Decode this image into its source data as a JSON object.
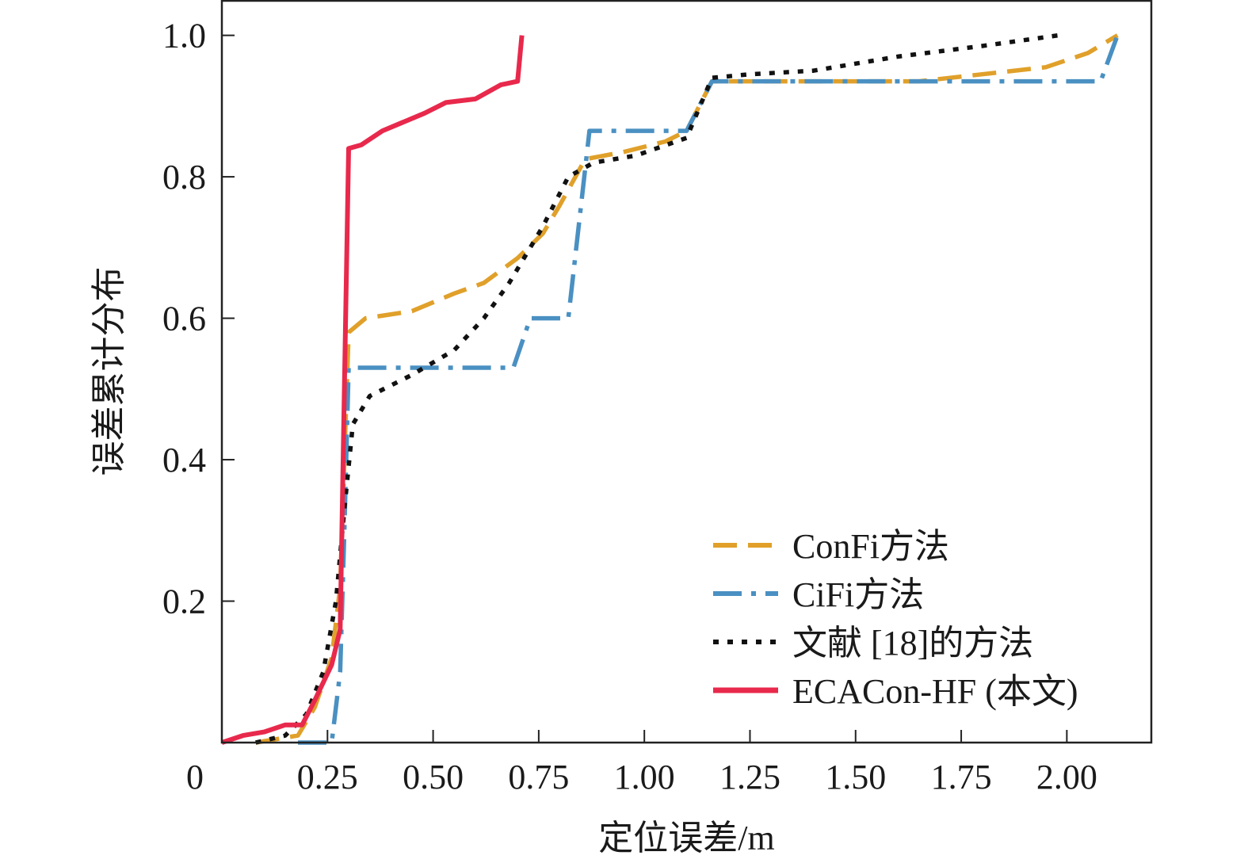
{
  "chart_data": {
    "type": "line",
    "xlabel": "定位误差/m",
    "ylabel": "误差累计分布",
    "xlim": [
      0,
      2.2
    ],
    "ylim": [
      0,
      1.05
    ],
    "x_ticks": [
      0.25,
      0.5,
      0.75,
      1.0,
      1.25,
      1.5,
      1.75,
      2.0
    ],
    "x_tick_labels": [
      "0.25",
      "0.50",
      "0.75",
      "1.00",
      "1.25",
      "1.50",
      "1.75",
      "2.00"
    ],
    "y_ticks": [
      0.2,
      0.4,
      0.6,
      0.8,
      1.0
    ],
    "y_tick_labels": [
      "0.2",
      "0.4",
      "0.6",
      "0.8",
      "1.0"
    ],
    "origin_label": "0",
    "grid": false,
    "legend_position": "bottom-right",
    "series": [
      {
        "name": "ConFi方法",
        "color": "#E0A02A",
        "style": "dashed",
        "points": [
          [
            0.08,
            0.0
          ],
          [
            0.18,
            0.01
          ],
          [
            0.22,
            0.05
          ],
          [
            0.26,
            0.12
          ],
          [
            0.28,
            0.22
          ],
          [
            0.29,
            0.4
          ],
          [
            0.3,
            0.58
          ],
          [
            0.34,
            0.6
          ],
          [
            0.45,
            0.61
          ],
          [
            0.55,
            0.635
          ],
          [
            0.62,
            0.65
          ],
          [
            0.7,
            0.685
          ],
          [
            0.76,
            0.72
          ],
          [
            0.8,
            0.76
          ],
          [
            0.86,
            0.825
          ],
          [
            0.95,
            0.835
          ],
          [
            1.05,
            0.85
          ],
          [
            1.1,
            0.865
          ],
          [
            1.16,
            0.935
          ],
          [
            1.3,
            0.935
          ],
          [
            1.65,
            0.935
          ],
          [
            1.8,
            0.945
          ],
          [
            1.95,
            0.955
          ],
          [
            2.05,
            0.975
          ],
          [
            2.12,
            1.0
          ]
        ]
      },
      {
        "name": "CiFi方法",
        "color": "#4A90C2",
        "style": "dashdot",
        "points": [
          [
            0.18,
            0.0
          ],
          [
            0.26,
            0.0
          ],
          [
            0.28,
            0.1
          ],
          [
            0.29,
            0.3
          ],
          [
            0.3,
            0.53
          ],
          [
            0.5,
            0.53
          ],
          [
            0.69,
            0.53
          ],
          [
            0.73,
            0.6
          ],
          [
            0.82,
            0.6
          ],
          [
            0.87,
            0.865
          ],
          [
            1.1,
            0.865
          ],
          [
            1.16,
            0.935
          ],
          [
            1.5,
            0.935
          ],
          [
            2.08,
            0.935
          ],
          [
            2.12,
            1.0
          ]
        ]
      },
      {
        "name": "文献 [18]的方法",
        "color": "#111111",
        "style": "dotted",
        "points": [
          [
            0.08,
            0.0
          ],
          [
            0.15,
            0.01
          ],
          [
            0.2,
            0.04
          ],
          [
            0.24,
            0.1
          ],
          [
            0.27,
            0.2
          ],
          [
            0.29,
            0.33
          ],
          [
            0.31,
            0.45
          ],
          [
            0.35,
            0.49
          ],
          [
            0.45,
            0.52
          ],
          [
            0.55,
            0.555
          ],
          [
            0.62,
            0.6
          ],
          [
            0.68,
            0.65
          ],
          [
            0.76,
            0.73
          ],
          [
            0.82,
            0.8
          ],
          [
            0.88,
            0.82
          ],
          [
            0.98,
            0.83
          ],
          [
            1.1,
            0.855
          ],
          [
            1.16,
            0.94
          ],
          [
            1.25,
            0.945
          ],
          [
            1.4,
            0.95
          ],
          [
            1.6,
            0.97
          ],
          [
            1.8,
            0.985
          ],
          [
            1.98,
            1.0
          ]
        ]
      },
      {
        "name": "ECACon-HF (本文)",
        "color": "#E8294C",
        "style": "solid",
        "points": [
          [
            0.0,
            0.0
          ],
          [
            0.05,
            0.01
          ],
          [
            0.1,
            0.015
          ],
          [
            0.15,
            0.025
          ],
          [
            0.19,
            0.025
          ],
          [
            0.22,
            0.06
          ],
          [
            0.26,
            0.11
          ],
          [
            0.28,
            0.16
          ],
          [
            0.29,
            0.5
          ],
          [
            0.3,
            0.84
          ],
          [
            0.33,
            0.845
          ],
          [
            0.38,
            0.865
          ],
          [
            0.42,
            0.875
          ],
          [
            0.48,
            0.89
          ],
          [
            0.53,
            0.905
          ],
          [
            0.6,
            0.91
          ],
          [
            0.66,
            0.93
          ],
          [
            0.7,
            0.935
          ],
          [
            0.71,
            1.0
          ]
        ]
      }
    ]
  }
}
